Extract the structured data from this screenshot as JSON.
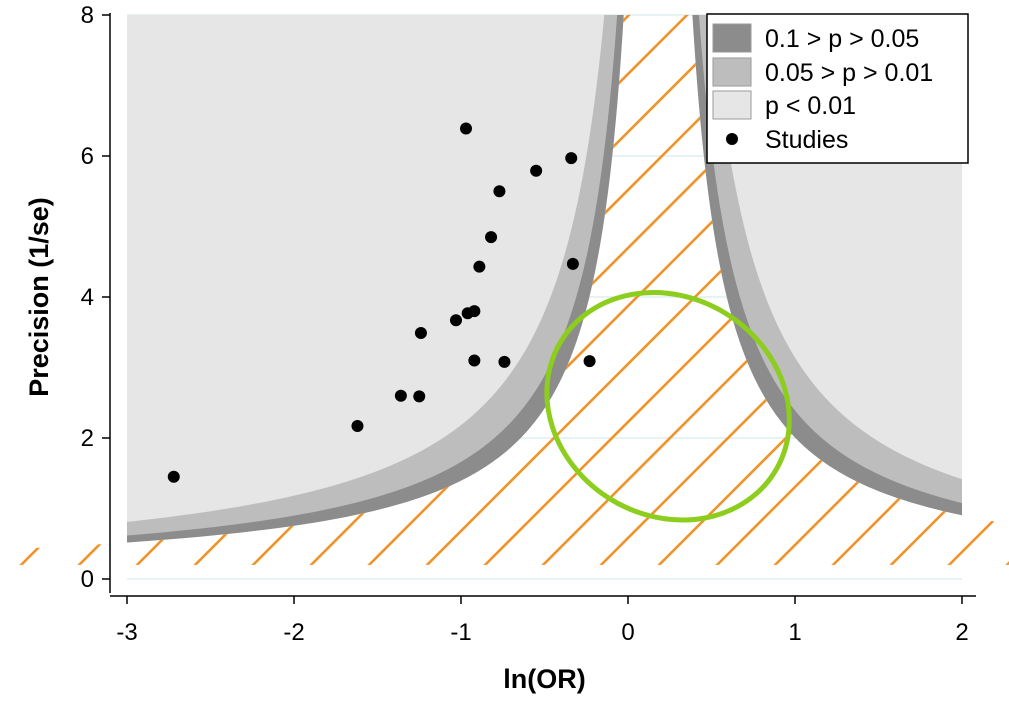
{
  "chart_data": {
    "type": "scatter",
    "title": "",
    "xlabel": "ln(OR)",
    "ylabel": "Precision (1/se)",
    "xlim": [
      -3,
      2
    ],
    "ylim": [
      0,
      8
    ],
    "x_ticks": [
      -3,
      -2,
      -1,
      0,
      1,
      2
    ],
    "x_tick_labels": [
      "-3",
      "-2",
      "-1",
      "0",
      "1",
      "2"
    ],
    "y_ticks": [
      0,
      2,
      4,
      6,
      8
    ],
    "y_tick_labels": [
      "0",
      "2",
      "4",
      "6",
      "8"
    ],
    "grid": "horizontal",
    "legend_position": "top-right",
    "contour_reference_ln_or": 0.18,
    "contours": [
      {
        "name": "0.1 > p > 0.05",
        "z": 1.645,
        "color": "#8c8c8c"
      },
      {
        "name": "0.05 > p > 0.01",
        "z": 1.96,
        "color": "#bdbdbd"
      },
      {
        "name": "p < 0.01",
        "z": 2.576,
        "color": "#e6e6e6"
      }
    ],
    "series": [
      {
        "name": "Studies",
        "marker": "circle",
        "color": "#000000",
        "points": [
          {
            "x": -2.72,
            "y": 1.45
          },
          {
            "x": -1.62,
            "y": 2.17
          },
          {
            "x": -1.36,
            "y": 2.6
          },
          {
            "x": -1.25,
            "y": 2.59
          },
          {
            "x": -1.24,
            "y": 3.49
          },
          {
            "x": -1.03,
            "y": 3.67
          },
          {
            "x": -0.97,
            "y": 6.39
          },
          {
            "x": -0.96,
            "y": 3.77
          },
          {
            "x": -0.92,
            "y": 3.8
          },
          {
            "x": -0.92,
            "y": 3.1
          },
          {
            "x": -0.89,
            "y": 4.43
          },
          {
            "x": -0.82,
            "y": 4.85
          },
          {
            "x": -0.77,
            "y": 5.5
          },
          {
            "x": -0.74,
            "y": 3.08
          },
          {
            "x": -0.55,
            "y": 5.79
          },
          {
            "x": -0.34,
            "y": 5.97
          },
          {
            "x": -0.33,
            "y": 4.47
          },
          {
            "x": -0.23,
            "y": 3.09
          }
        ]
      }
    ],
    "annotations": {
      "hatched_region": {
        "color": "#f0932b"
      },
      "ellipse": {
        "cx": 0.24,
        "cy": 2.45,
        "rx": 0.75,
        "ry": 1.55,
        "color": "#8ccd1e"
      }
    }
  },
  "legend": {
    "items": [
      "0.1 > p > 0.05",
      "0.05 > p > 0.01",
      "p < 0.01",
      "Studies"
    ]
  }
}
